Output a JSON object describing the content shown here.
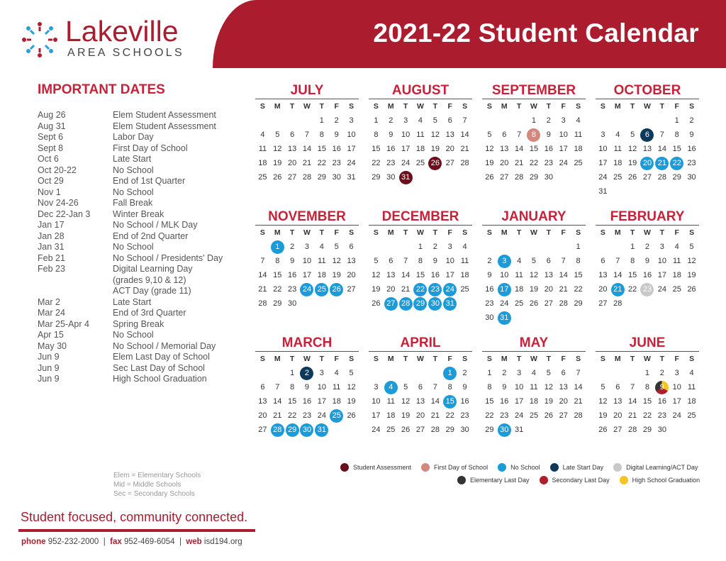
{
  "header": {
    "title": "2021-22 Student Calendar",
    "brand": "Lakeville",
    "brand_sub": "AREA SCHOOLS"
  },
  "colors": {
    "accent": "#ab1c2f",
    "assessment": "#6b0f1a",
    "first_day": "#d4877c",
    "no_school": "#1b9bd7",
    "late_start": "#0d3a5c",
    "digital": "#c8c8c8",
    "elem_last": "#333333",
    "sec_last": "#b01e2e",
    "graduation": "#f6c324"
  },
  "important": {
    "title": "IMPORTANT DATES",
    "items": [
      {
        "date": "Aug 26",
        "event": "Elem Student Assessment"
      },
      {
        "date": "Aug 31",
        "event": "Elem Student Assessment"
      },
      {
        "date": "Sept 6",
        "event": "Labor Day"
      },
      {
        "date": "Sept 8",
        "event": "First Day of School"
      },
      {
        "date": "Oct 6",
        "event": "Late Start"
      },
      {
        "date": "Oct 20-22",
        "event": "No School"
      },
      {
        "date": "Oct 29",
        "event": "End of 1st Quarter"
      },
      {
        "date": "Nov 1",
        "event": "No School"
      },
      {
        "date": "Nov 24-26",
        "event": "Fall Break"
      },
      {
        "date": "Dec 22-Jan 3",
        "event": "Winter Break"
      },
      {
        "date": "Jan 17",
        "event": "No School / MLK Day"
      },
      {
        "date": "Jan 28",
        "event": "End of 2nd Quarter"
      },
      {
        "date": "Jan 31",
        "event": "No School"
      },
      {
        "date": "Feb 21",
        "event": "No School / Presidents' Day"
      },
      {
        "date": "Feb 23",
        "event": "Digital Learning Day"
      },
      {
        "date": "",
        "event": "(grades 9,10 & 12)"
      },
      {
        "date": "",
        "event": "ACT Day (grade 11)"
      },
      {
        "date": "Mar 2",
        "event": "Late Start"
      },
      {
        "date": "Mar 24",
        "event": "End of 3rd Quarter"
      },
      {
        "date": "Mar 25-Apr 4",
        "event": "Spring Break"
      },
      {
        "date": "Apr 15",
        "event": "No School"
      },
      {
        "date": "May 30",
        "event": "No School / Memorial Day"
      },
      {
        "date": "Jun 9",
        "event": "Elem Last Day of School"
      },
      {
        "date": "Jun 9",
        "event": "Sec Last Day of School"
      },
      {
        "date": "Jun 9",
        "event": "High School Graduation"
      }
    ]
  },
  "weekdays": [
    "S",
    "M",
    "T",
    "W",
    "T",
    "F",
    "S"
  ],
  "months": [
    {
      "name": "JULY",
      "start": 4,
      "days": 31,
      "marks": {}
    },
    {
      "name": "AUGUST",
      "start": 0,
      "days": 31,
      "marks": {
        "26": "assessment",
        "31": "assessment"
      }
    },
    {
      "name": "SEPTEMBER",
      "start": 3,
      "days": 30,
      "marks": {
        "8": "first_day"
      }
    },
    {
      "name": "OCTOBER",
      "start": 5,
      "days": 31,
      "marks": {
        "6": "late_start",
        "20": "no_school",
        "21": "no_school",
        "22": "no_school"
      }
    },
    {
      "name": "NOVEMBER",
      "start": 1,
      "days": 30,
      "marks": {
        "1": "no_school",
        "24": "no_school",
        "25": "no_school",
        "26": "no_school"
      }
    },
    {
      "name": "DECEMBER",
      "start": 3,
      "days": 31,
      "marks": {
        "22": "no_school",
        "23": "no_school",
        "24": "no_school",
        "27": "no_school",
        "28": "no_school",
        "29": "no_school",
        "30": "no_school",
        "31": "no_school"
      }
    },
    {
      "name": "JANUARY",
      "start": 6,
      "days": 31,
      "marks": {
        "3": "no_school",
        "17": "no_school",
        "31": "no_school"
      }
    },
    {
      "name": "FEBRUARY",
      "start": 2,
      "days": 28,
      "marks": {
        "21": "no_school",
        "23": "digital"
      }
    },
    {
      "name": "MARCH",
      "start": 2,
      "days": 31,
      "marks": {
        "2": "late_start",
        "25": "no_school",
        "28": "no_school",
        "29": "no_school",
        "30": "no_school",
        "31": "no_school"
      }
    },
    {
      "name": "APRIL",
      "start": 5,
      "days": 30,
      "marks": {
        "1": "no_school",
        "4": "no_school",
        "15": "no_school"
      }
    },
    {
      "name": "MAY",
      "start": 0,
      "days": 31,
      "marks": {
        "30": "no_school"
      }
    },
    {
      "name": "JUNE",
      "start": 3,
      "days": 30,
      "marks": {
        "9": "last_day_graduation"
      }
    }
  ],
  "legend": {
    "row1": [
      {
        "label": "Student Assessment",
        "color": "#6b0f1a"
      },
      {
        "label": "First Day of School",
        "color": "#d4877c"
      },
      {
        "label": "No School",
        "color": "#1b9bd7"
      },
      {
        "label": "Late Start Day",
        "color": "#0d3a5c"
      },
      {
        "label": "Digital Learning/ACT Day",
        "color": "#c8c8c8"
      }
    ],
    "row2": [
      {
        "label": "Elementary Last Day",
        "color": "#333333"
      },
      {
        "label": "Secondary Last Day",
        "color": "#b01e2e"
      },
      {
        "label": "High School Graduation",
        "color": "#f6c324"
      }
    ]
  },
  "abbreviations": [
    "Elem = Elementary Schools",
    "Mid = Middle Schools",
    "Sec = Secondary Schools"
  ],
  "footer": {
    "slogan": "Student focused, community connected.",
    "phone_label": "phone",
    "phone": "952-232-2000",
    "fax_label": "fax",
    "fax": "952-469-6054",
    "web_label": "web",
    "web": "isd194.org"
  }
}
